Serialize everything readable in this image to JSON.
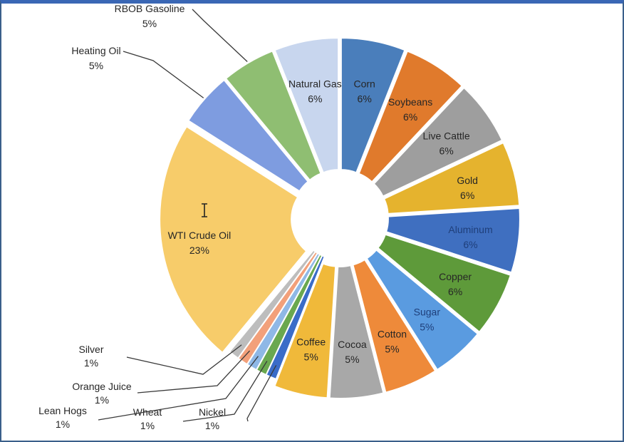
{
  "chart_data": {
    "type": "pie",
    "style": "exploded",
    "title": "",
    "slices": [
      {
        "label": "Corn",
        "value": 6,
        "display": "6%",
        "color": "#4a7ebb",
        "text_color": "#262626"
      },
      {
        "label": "Soybeans",
        "value": 6,
        "display": "6%",
        "color": "#e07a2c",
        "text_color": "#262626"
      },
      {
        "label": "Live Cattle",
        "value": 6,
        "display": "6%",
        "color": "#9e9e9e",
        "text_color": "#262626"
      },
      {
        "label": "Gold",
        "value": 6,
        "display": "6%",
        "color": "#e5b32e",
        "text_color": "#262626"
      },
      {
        "label": "Aluminum",
        "value": 6,
        "display": "6%",
        "color": "#3f6fc0",
        "text_color": "#1f3f7a"
      },
      {
        "label": "Copper",
        "value": 6,
        "display": "6%",
        "color": "#5e9a3a",
        "text_color": "#262626"
      },
      {
        "label": "Sugar",
        "value": 5,
        "display": "5%",
        "color": "#5a9be0",
        "text_color": "#1f3f7a"
      },
      {
        "label": "Cotton",
        "value": 5,
        "display": "5%",
        "color": "#ee8a3a",
        "text_color": "#262626"
      },
      {
        "label": "Cocoa",
        "value": 5,
        "display": "5%",
        "color": "#a8a8a8",
        "text_color": "#262626"
      },
      {
        "label": "Coffee",
        "value": 5,
        "display": "5%",
        "color": "#f0b93a",
        "text_color": "#262626"
      },
      {
        "label": "Nickel",
        "value": 1,
        "display": "1%",
        "color": "#3a6cc8",
        "text_color": "#262626"
      },
      {
        "label": "Wheat",
        "value": 1,
        "display": "1%",
        "color": "#6aa84f",
        "text_color": "#262626"
      },
      {
        "label": "Lean Hogs",
        "value": 1,
        "display": "1%",
        "color": "#8fb8e6",
        "text_color": "#262626"
      },
      {
        "label": "Orange Juice",
        "value": 1,
        "display": "1%",
        "color": "#f2a07a",
        "text_color": "#262626"
      },
      {
        "label": "Silver",
        "value": 1,
        "display": "1%",
        "color": "#bdbdbd",
        "text_color": "#262626"
      },
      {
        "label": "WTI Crude Oil",
        "value": 23,
        "display": "23%",
        "color": "#f7cc6a",
        "text_color": "#262626"
      },
      {
        "label": "Heating Oil",
        "value": 5,
        "display": "5%",
        "color": "#7e9ce0",
        "text_color": "#262626"
      },
      {
        "label": "RBOB Gasoline",
        "value": 5,
        "display": "5%",
        "color": "#8fbe72",
        "text_color": "#262626"
      },
      {
        "label": "Natural Gas",
        "value": 6,
        "display": "6%",
        "color": "#c8d6ee",
        "text_color": "#262626"
      }
    ]
  }
}
